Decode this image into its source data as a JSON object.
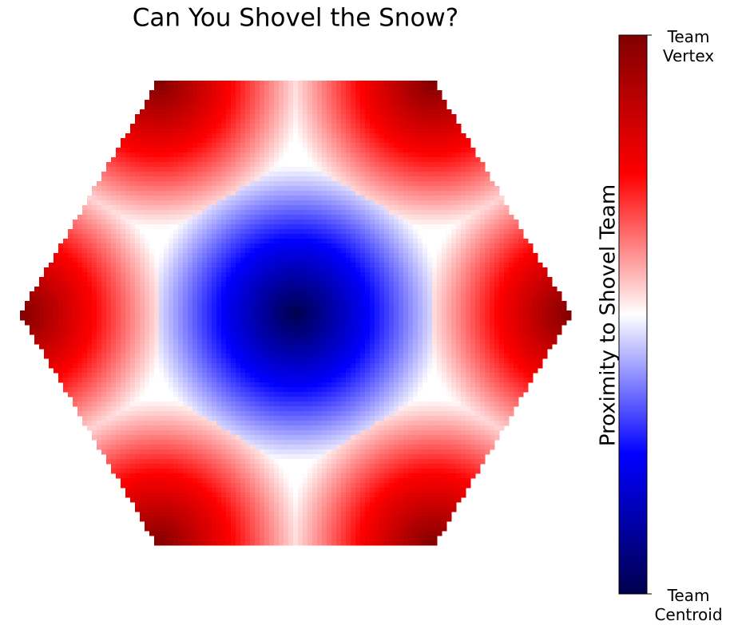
{
  "chart_data": {
    "type": "hex-field",
    "title": "Can You Shovel the Snow?",
    "colorbar": {
      "label": "Proximity to Shovel Team",
      "colormap": "seismic",
      "clim": [
        0,
        1
      ],
      "ticks": [
        {
          "value": 0,
          "label": "Team\nCentroid"
        },
        {
          "value": 1,
          "label": "Team\nVertex"
        }
      ]
    }
  }
}
